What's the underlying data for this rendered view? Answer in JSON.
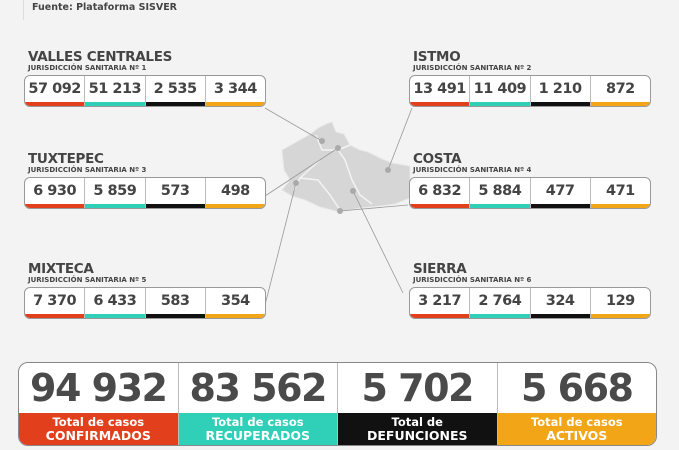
{
  "source": "Fuente: Plataforma SISVER",
  "colors": {
    "confirmed": "#e2401c",
    "recovered": "#2fcfb8",
    "deaths": "#111111",
    "active": "#f2a516"
  },
  "regions": [
    {
      "name": "VALLES CENTRALES",
      "sub": "JURISDICCIÓN SANITARIA Nº 1",
      "values": [
        "57 092",
        "51 213",
        "2 535",
        "3 344"
      ]
    },
    {
      "name": "ISTMO",
      "sub": "JURISDICCIÓN SANITARIA Nº 2",
      "values": [
        "13 491",
        "11 409",
        "1 210",
        "872"
      ]
    },
    {
      "name": "TUXTEPEC",
      "sub": "JURISDICCIÓN SANITARIA Nº 3",
      "values": [
        "6 930",
        "5 859",
        "573",
        "498"
      ]
    },
    {
      "name": "COSTA",
      "sub": "JURISDICCIÓN SANITARIA Nº 4",
      "values": [
        "6 832",
        "5 884",
        "477",
        "471"
      ]
    },
    {
      "name": "MIXTECA",
      "sub": "JURISDICCIÓN SANITARIA Nº 5",
      "values": [
        "7 370",
        "6 433",
        "583",
        "354"
      ]
    },
    {
      "name": "SIERRA",
      "sub": "JURISDICCIÓN SANITARIA Nº 6",
      "values": [
        "3 217",
        "2 764",
        "324",
        "129"
      ]
    }
  ],
  "totals": [
    {
      "value": "94 932",
      "line1": "Total de casos",
      "line2": "CONFIRMADOS"
    },
    {
      "value": "83 562",
      "line1": "Total de casos",
      "line2": "RECUPERADOS"
    },
    {
      "value": "5 702",
      "line1": "Total de",
      "line2": "DEFUNCIONES"
    },
    {
      "value": "5 668",
      "line1": "Total de casos",
      "line2": "ACTIVOS"
    }
  ]
}
